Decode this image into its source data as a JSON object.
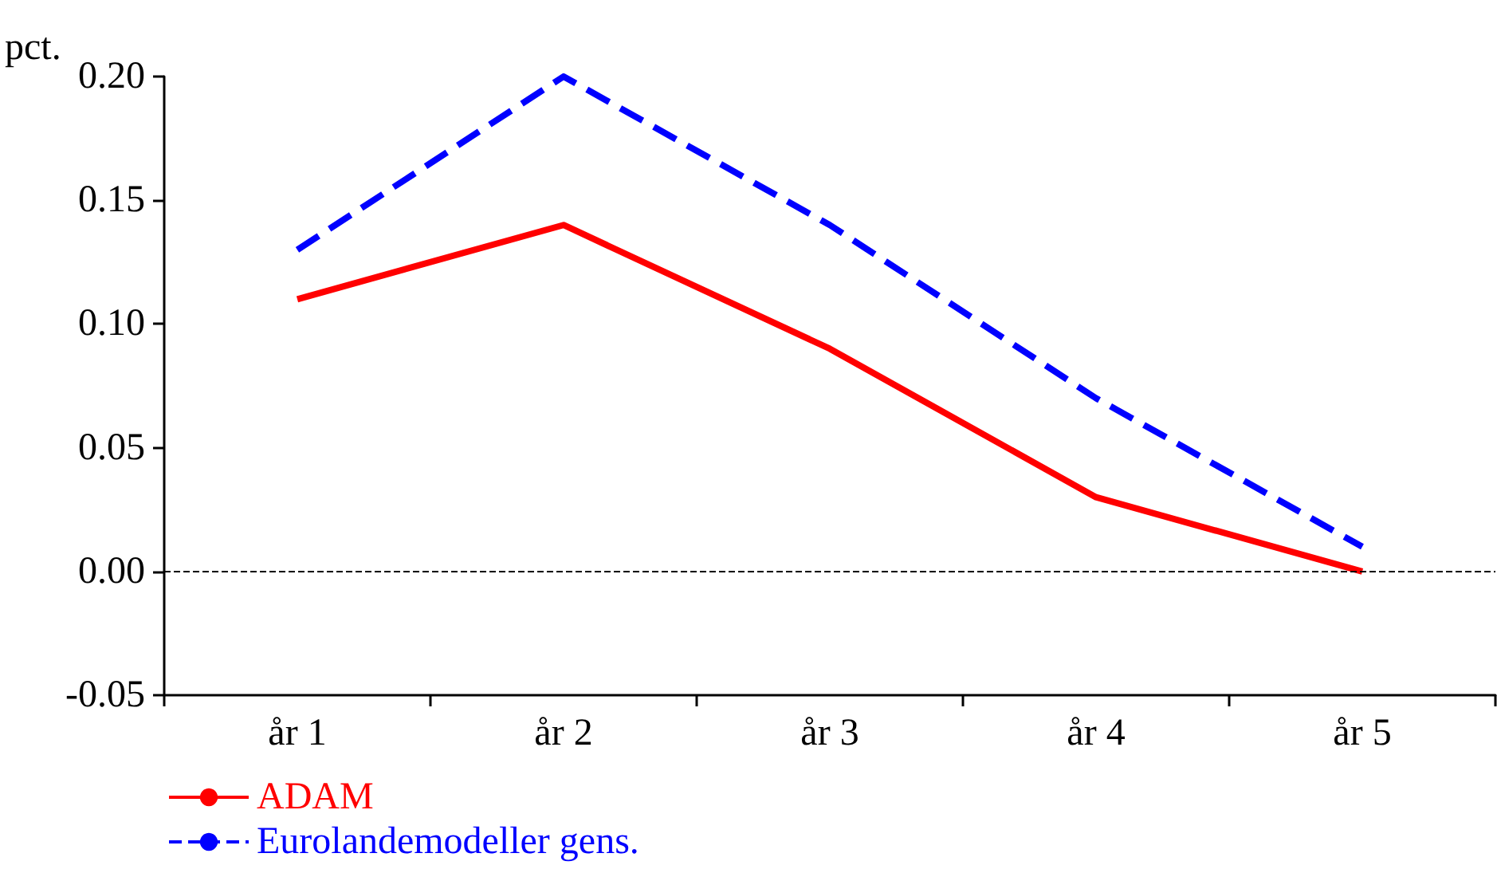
{
  "chart_data": {
    "type": "line",
    "ylabel": "pct.",
    "categories": [
      "år 1",
      "år 2",
      "år 3",
      "år 4",
      "år 5"
    ],
    "series": [
      {
        "name": "ADAM",
        "color": "#ff0000",
        "values": [
          0.11,
          0.14,
          0.09,
          0.03,
          0.0
        ],
        "line_style": "solid"
      },
      {
        "name": "Eurolandemodeller gens.",
        "color": "#0000ff",
        "values": [
          0.13,
          0.2,
          0.14,
          0.07,
          0.01
        ],
        "line_style": "dashed"
      }
    ],
    "ylim": [
      -0.05,
      0.2
    ],
    "yticks": [
      {
        "value": -0.05,
        "label": "-0.05"
      },
      {
        "value": 0,
        "label": "0.00"
      },
      {
        "value": 0.05,
        "label": "0.05"
      },
      {
        "value": 0.1,
        "label": "0.10"
      },
      {
        "value": 0.15,
        "label": "0.15"
      },
      {
        "value": 0.2,
        "label": "0.20"
      }
    ],
    "ref_lines": [
      {
        "axis": "y",
        "value": 0,
        "color": "#000000",
        "line_style": "dashed"
      }
    ],
    "grid": false,
    "legend": "bottom left",
    "marker": "none"
  }
}
